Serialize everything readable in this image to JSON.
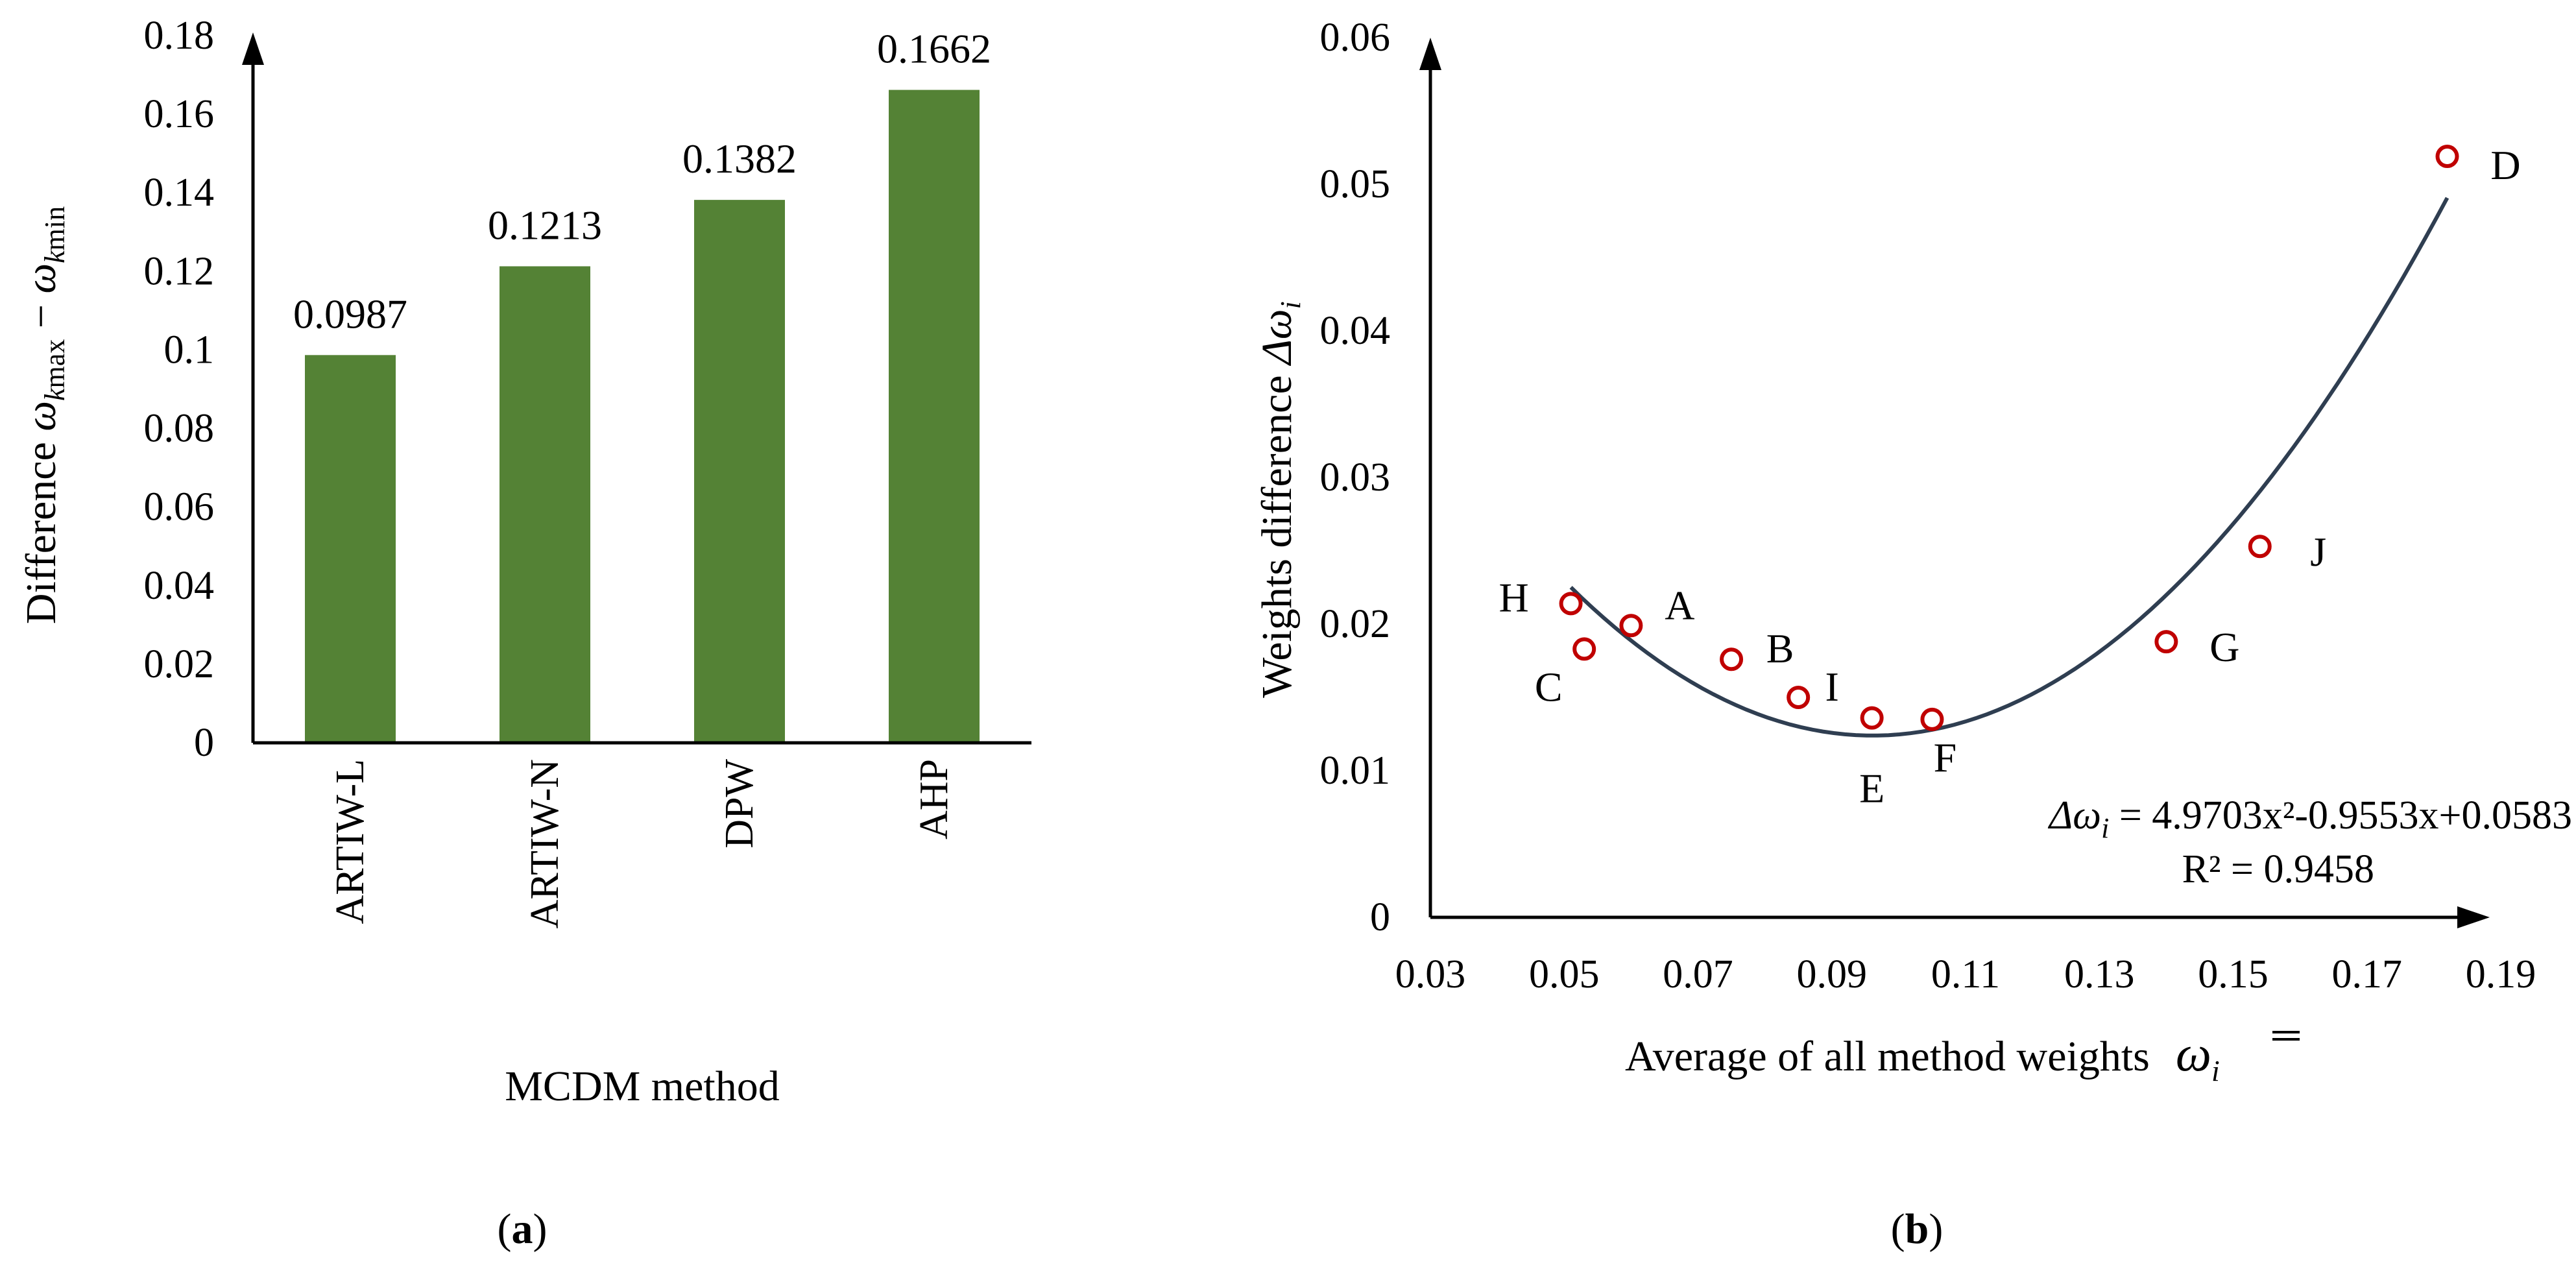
{
  "figure": {
    "panel_a_label": "(a)",
    "panel_b_label": "(b)"
  },
  "chart_data": [
    {
      "type": "bar",
      "title": "",
      "categories": [
        "ARTIW-L",
        "ARTIW-N",
        "DPW",
        "AHP"
      ],
      "values": [
        0.0987,
        0.1213,
        0.1382,
        0.1662
      ],
      "data_labels": [
        "0.0987",
        "0.1213",
        "0.1382",
        "0.1662"
      ],
      "xlabel": "MCDM method",
      "ylabel": {
        "prefix": "Difference ",
        "omega": "ω",
        "k": "k",
        "max": "max",
        "minus": " − ",
        "min": "min"
      },
      "ylim": [
        0,
        0.18
      ],
      "yticks": [
        0,
        0.02,
        0.04,
        0.06,
        0.08,
        0.1,
        0.12,
        0.14,
        0.16,
        0.18
      ],
      "ytick_labels": [
        "0",
        "0.02",
        "0.04",
        "0.06",
        "0.08",
        "0.1",
        "0.12",
        "0.14",
        "0.16",
        "0.18"
      ],
      "bar_color": "#548235",
      "grid": false
    },
    {
      "type": "scatter",
      "points": [
        {
          "label": "H",
          "x": 0.051,
          "y": 0.0214
        },
        {
          "label": "C",
          "x": 0.053,
          "y": 0.0183
        },
        {
          "label": "A",
          "x": 0.06,
          "y": 0.0199
        },
        {
          "label": "B",
          "x": 0.075,
          "y": 0.0176
        },
        {
          "label": "I",
          "x": 0.085,
          "y": 0.015
        },
        {
          "label": "E",
          "x": 0.096,
          "y": 0.0136
        },
        {
          "label": "F",
          "x": 0.105,
          "y": 0.0135
        },
        {
          "label": "G",
          "x": 0.14,
          "y": 0.0188
        },
        {
          "label": "J",
          "x": 0.154,
          "y": 0.0253
        },
        {
          "label": "D",
          "x": 0.182,
          "y": 0.0519
        }
      ],
      "trendline": {
        "type": "polynomial",
        "a": 4.9703,
        "b": -0.9553,
        "c": 0.0583,
        "x_range": [
          0.051,
          0.182
        ]
      },
      "equation": {
        "lhs_delta": "Δω",
        "lhs_sub": "i",
        "rhs": " = 4.9703x²-0.9553x+0.0583"
      },
      "r_squared": "R² = 0.9458",
      "xlabel": {
        "text": "Average of all method weights",
        "symbol": "ω",
        "sub": "i"
      },
      "ylabel": {
        "text": "Weights difference ",
        "delta": "Δω",
        "sub": "i"
      },
      "xlim": [
        0.03,
        0.19
      ],
      "ylim": [
        0,
        0.06
      ],
      "xtick_labels": [
        "0.03",
        "0.05",
        "0.07",
        "0.09",
        "0.11",
        "0.13",
        "0.15",
        "0.17",
        "0.19"
      ],
      "ytick_labels": [
        "0",
        "0.01",
        "0.02",
        "0.03",
        "0.04",
        "0.05",
        "0.06"
      ],
      "marker_color": "#C00000",
      "trend_color": "#2F3E51",
      "grid": false
    }
  ]
}
